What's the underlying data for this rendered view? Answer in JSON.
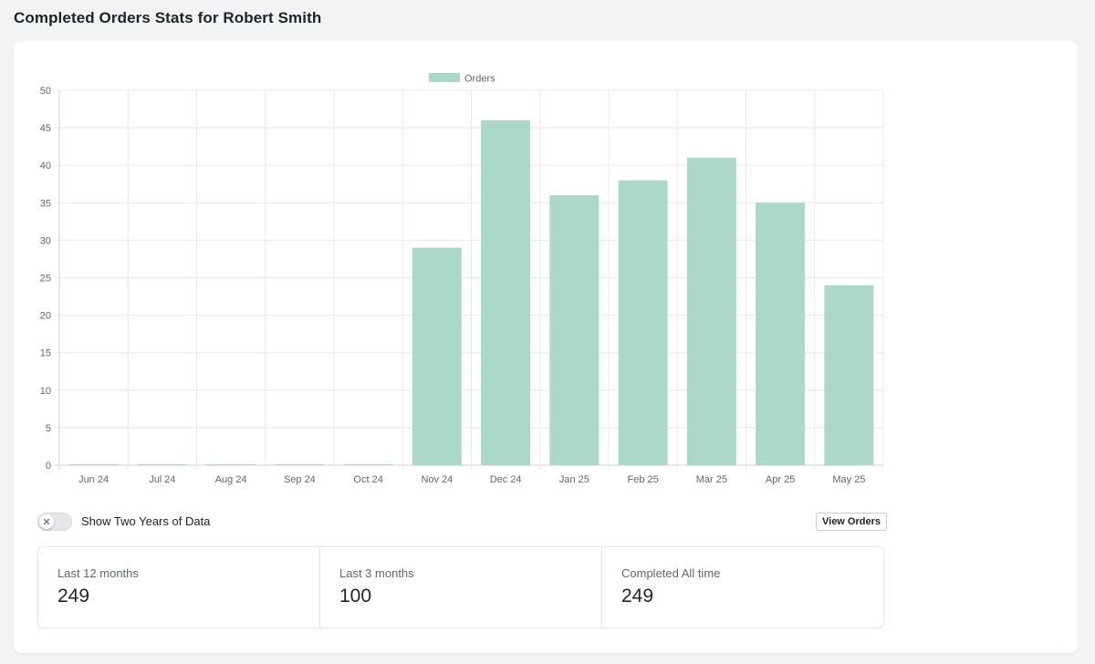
{
  "header": {
    "title": "Completed Orders Stats for Robert Smith"
  },
  "chart_data": {
    "type": "bar",
    "legend": {
      "label": "Orders",
      "position": "top-center"
    },
    "categories": [
      "Jun 24",
      "Jul 24",
      "Aug 24",
      "Sep 24",
      "Oct 24",
      "Nov 24",
      "Dec 24",
      "Jan 25",
      "Feb 25",
      "Mar 25",
      "Apr 25",
      "May 25"
    ],
    "values": [
      0,
      0,
      0,
      0,
      0,
      29,
      46,
      36,
      38,
      41,
      35,
      24
    ],
    "ylim": [
      0,
      50
    ],
    "yticks": [
      0,
      5,
      10,
      15,
      20,
      25,
      30,
      35,
      40,
      45,
      50
    ],
    "grid": true,
    "bar_color": "#acd8c9",
    "xlabel": "",
    "ylabel": ""
  },
  "controls": {
    "toggle_label": "Show Two Years of Data",
    "toggle_state": "off",
    "toggle_icon": "x-icon",
    "view_orders_label": "View Orders"
  },
  "stats": [
    {
      "label": "Last 12 months",
      "value": "249"
    },
    {
      "label": "Last 3 months",
      "value": "100"
    },
    {
      "label": "Completed All time",
      "value": "249"
    }
  ]
}
